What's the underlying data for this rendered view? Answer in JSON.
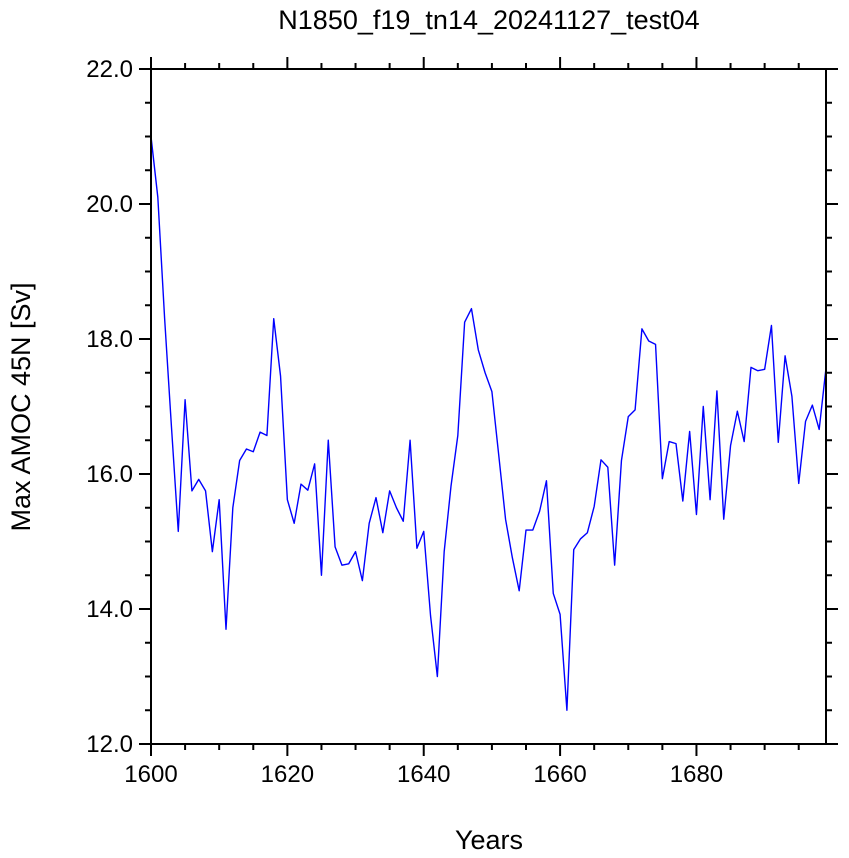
{
  "chart_data": {
    "type": "line",
    "title": "N1850_f19_tn14_20241127_test04",
    "xlabel": "Years",
    "ylabel": "Max AMOC 45N [Sv]",
    "xlim": [
      1600,
      1699
    ],
    "ylim": [
      12.0,
      22.0
    ],
    "x_ticks": [
      1600,
      1620,
      1640,
      1660,
      1680
    ],
    "x_tick_labels": [
      "1600",
      "1620",
      "1640",
      "1660",
      "1680"
    ],
    "y_ticks": [
      12,
      14,
      16,
      18,
      20,
      22
    ],
    "y_tick_labels": [
      "12.0",
      "14.0",
      "16.0",
      "18.0",
      "20.0",
      "22.0"
    ],
    "grid": false,
    "series": [
      {
        "color": "#0000ff",
        "x": [
          1600,
          1601,
          1602,
          1603,
          1604,
          1605,
          1606,
          1607,
          1608,
          1609,
          1610,
          1611,
          1612,
          1613,
          1614,
          1615,
          1616,
          1617,
          1618,
          1619,
          1620,
          1621,
          1622,
          1623,
          1624,
          1625,
          1626,
          1627,
          1628,
          1629,
          1630,
          1631,
          1632,
          1633,
          1634,
          1635,
          1636,
          1637,
          1638,
          1639,
          1640,
          1641,
          1642,
          1643,
          1644,
          1645,
          1646,
          1647,
          1648,
          1649,
          1650,
          1651,
          1652,
          1653,
          1654,
          1655,
          1656,
          1657,
          1658,
          1659,
          1660,
          1661,
          1662,
          1663,
          1664,
          1665,
          1666,
          1667,
          1668,
          1669,
          1670,
          1671,
          1672,
          1673,
          1674,
          1675,
          1676,
          1677,
          1678,
          1679,
          1680,
          1681,
          1682,
          1683,
          1684,
          1685,
          1686,
          1687,
          1688,
          1689,
          1690,
          1691,
          1692,
          1693,
          1694,
          1695,
          1696,
          1697,
          1698,
          1699
        ],
        "values": [
          21.0,
          20.1,
          18.3,
          16.7,
          15.15,
          17.1,
          15.75,
          15.92,
          15.75,
          14.85,
          15.62,
          13.7,
          15.5,
          16.2,
          16.37,
          16.33,
          16.62,
          16.57,
          18.3,
          17.45,
          15.62,
          15.27,
          15.85,
          15.76,
          16.15,
          14.5,
          16.5,
          14.92,
          14.65,
          14.67,
          14.85,
          14.42,
          15.27,
          15.65,
          15.13,
          15.75,
          15.5,
          15.3,
          16.5,
          14.9,
          15.15,
          13.9,
          13.0,
          14.85,
          15.82,
          16.57,
          18.25,
          18.45,
          17.84,
          17.5,
          17.22,
          16.28,
          15.33,
          14.76,
          14.27,
          15.17,
          15.17,
          15.45,
          15.9,
          14.23,
          13.92,
          12.5,
          14.88,
          15.04,
          15.13,
          15.52,
          16.21,
          16.1,
          14.65,
          16.2,
          16.85,
          16.95,
          18.15,
          17.97,
          17.92,
          15.93,
          16.48,
          16.45,
          15.6,
          16.63,
          15.4,
          17.0,
          15.62,
          17.23,
          15.33,
          16.42,
          16.93,
          16.48,
          17.58,
          17.53,
          17.55,
          18.2,
          16.47,
          17.75,
          17.15,
          15.86,
          16.78,
          17.02,
          16.66,
          17.57
        ]
      }
    ]
  }
}
